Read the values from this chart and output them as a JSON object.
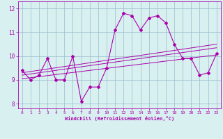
{
  "xlabel": "Windchill (Refroidissement éolien,°C)",
  "bg_color": "#d8f0f0",
  "line_color": "#aa00aa",
  "grid_color": "#99bbcc",
  "xlim": [
    -0.5,
    23.5
  ],
  "ylim": [
    7.8,
    12.3
  ],
  "xticks": [
    0,
    1,
    2,
    3,
    4,
    5,
    6,
    7,
    8,
    9,
    10,
    11,
    12,
    13,
    14,
    15,
    16,
    17,
    18,
    19,
    20,
    21,
    22,
    23
  ],
  "yticks": [
    8,
    9,
    10,
    11,
    12
  ],
  "curve1_x": [
    0,
    1,
    2,
    3,
    4,
    5,
    6,
    7,
    8,
    9,
    10,
    11,
    12,
    13,
    14,
    15,
    16,
    17,
    18,
    19,
    20,
    21,
    22,
    23
  ],
  "curve1_y": [
    9.4,
    9.0,
    9.2,
    9.9,
    9.0,
    9.0,
    10.0,
    8.1,
    8.7,
    8.7,
    9.5,
    11.1,
    11.8,
    11.7,
    11.1,
    11.6,
    11.7,
    11.4,
    10.5,
    9.9,
    9.9,
    9.2,
    9.3,
    10.1
  ],
  "line1_x": [
    0,
    23
  ],
  "line1_y": [
    9.05,
    10.05
  ],
  "line2_x": [
    0,
    23
  ],
  "line2_y": [
    9.2,
    10.35
  ],
  "line3_x": [
    0,
    23
  ],
  "line3_y": [
    9.3,
    10.5
  ]
}
